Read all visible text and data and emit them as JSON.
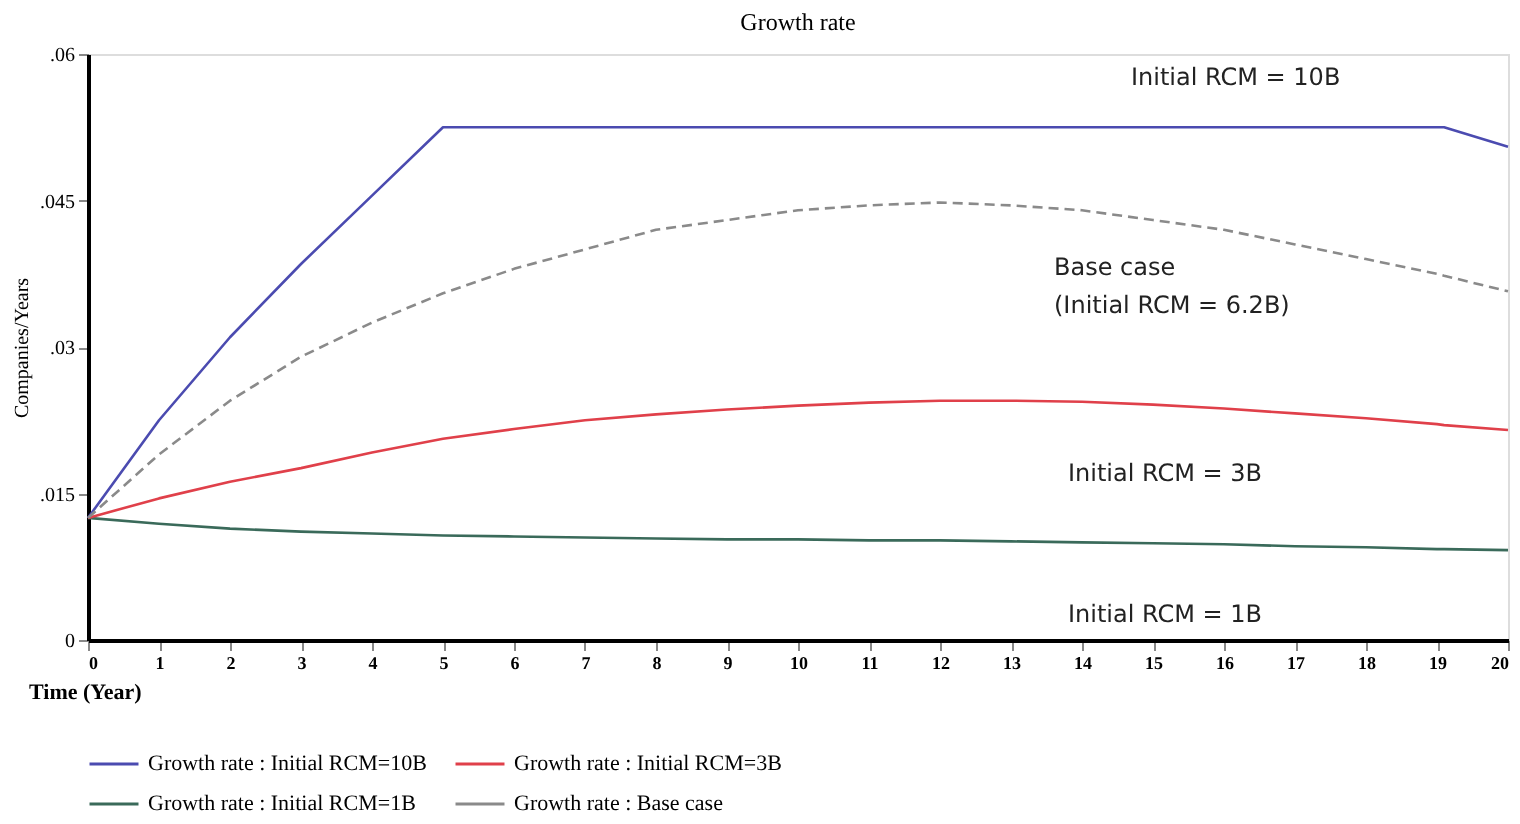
{
  "chart_data": {
    "type": "line",
    "title": "Growth rate",
    "xlabel": "Time (Year)",
    "ylabel": "Companies/Years",
    "x": [
      0,
      1,
      2,
      3,
      4,
      5,
      6,
      7,
      8,
      9,
      10,
      11,
      12,
      13,
      14,
      15,
      16,
      17,
      18,
      19,
      19.1,
      20
    ],
    "series": [
      {
        "name": "Growth rate : Initial RCM=10B",
        "color": "#4b4bb0",
        "line_style": "solid",
        "values": [
          0.0125,
          0.0225,
          0.031,
          0.0385,
          0.0455,
          0.0525,
          0.0525,
          0.0525,
          0.0525,
          0.0525,
          0.0525,
          0.0525,
          0.0525,
          0.0525,
          0.0525,
          0.0525,
          0.0525,
          0.0525,
          0.0525,
          0.0525,
          0.0525,
          0.0505
        ]
      },
      {
        "name": "Growth rate : Initial RCM=1B",
        "color": "#3a6a5a",
        "line_style": "solid",
        "values": [
          0.0125,
          0.0119,
          0.0114,
          0.0111,
          0.0109,
          0.0107,
          0.0106,
          0.0105,
          0.0104,
          0.0103,
          0.0103,
          0.0102,
          0.0102,
          0.0101,
          0.01,
          0.0099,
          0.0098,
          0.0096,
          0.0095,
          0.0093,
          0.0093,
          0.0092
        ]
      },
      {
        "name": "Growth rate : Initial RCM=3B",
        "color": "#e0404a",
        "line_style": "solid",
        "values": [
          0.0125,
          0.0145,
          0.0162,
          0.0176,
          0.0192,
          0.0206,
          0.0216,
          0.0225,
          0.0231,
          0.0236,
          0.024,
          0.0243,
          0.0245,
          0.0245,
          0.0244,
          0.0241,
          0.0237,
          0.0232,
          0.0227,
          0.0221,
          0.022,
          0.0215
        ]
      },
      {
        "name": "Growth rate : Base case",
        "color": "#8a8a8a",
        "line_style": "dashed",
        "values": [
          0.0125,
          0.019,
          0.0245,
          0.029,
          0.0325,
          0.0355,
          0.038,
          0.04,
          0.042,
          0.043,
          0.044,
          0.0445,
          0.0448,
          0.0445,
          0.044,
          0.043,
          0.042,
          0.0405,
          0.039,
          0.0375,
          0.0373,
          0.0357
        ]
      }
    ],
    "xlim": [
      0,
      20
    ],
    "xticks": [
      0,
      1,
      2,
      3,
      4,
      5,
      6,
      7,
      8,
      9,
      10,
      11,
      12,
      13,
      14,
      15,
      16,
      17,
      18,
      19,
      20
    ],
    "ylim": [
      0,
      0.06
    ],
    "yticks": [
      {
        "value": 0,
        "label": "0"
      },
      {
        "value": 0.015,
        "label": ".015"
      },
      {
        "value": 0.03,
        "label": ".03"
      },
      {
        "value": 0.045,
        "label": ".045"
      },
      {
        "value": 0.06,
        "label": ".06"
      }
    ],
    "grid": false,
    "legend": "bottom",
    "marker": "none",
    "annotations": [
      "Initial RCM = 10B",
      "Base case",
      "(Initial RCM = 6.2B)",
      "Initial RCM = 3B",
      "Initial RCM = 1B"
    ]
  }
}
